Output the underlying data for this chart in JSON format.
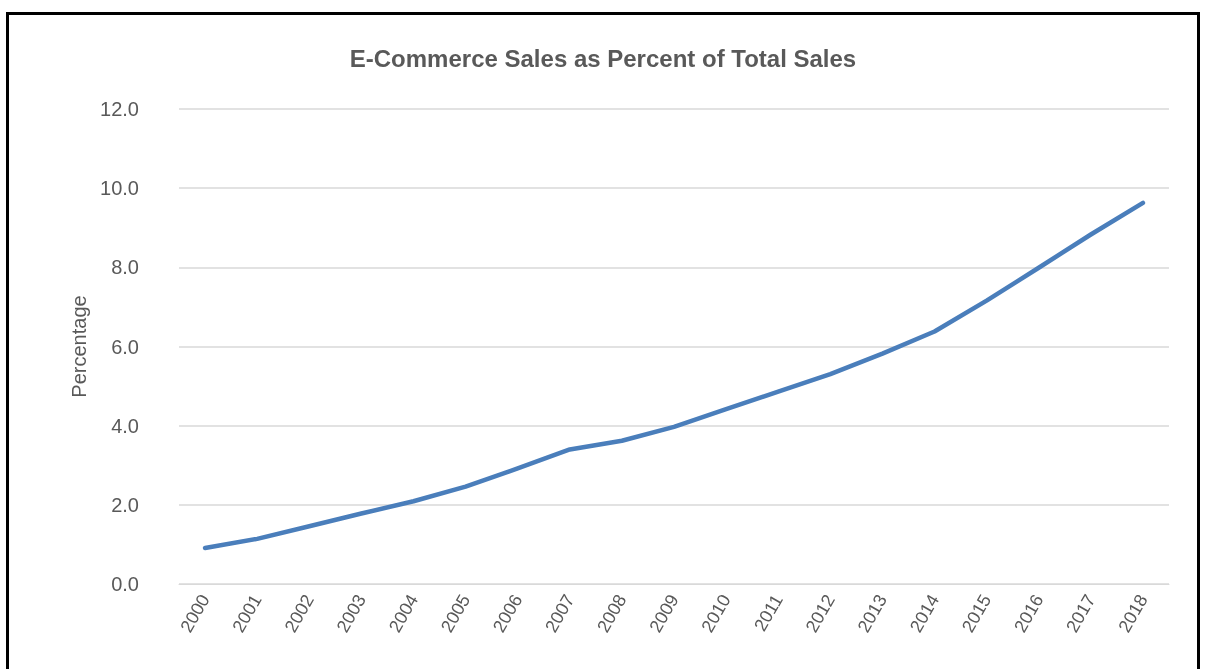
{
  "chart_data": {
    "type": "line",
    "title": "E-Commerce Sales as Percent of Total Sales",
    "ylabel": "Percentage",
    "categories": [
      "2000",
      "2001",
      "2002",
      "2003",
      "2004",
      "2005",
      "2006",
      "2007",
      "2008",
      "2009",
      "2010",
      "2011",
      "2012",
      "2013",
      "2014",
      "2015",
      "2016",
      "2017",
      "2018"
    ],
    "series": [
      {
        "color": "#4a7ebb",
        "values": [
          0.91,
          1.14,
          1.46,
          1.78,
          2.09,
          2.46,
          2.92,
          3.4,
          3.62,
          3.97,
          4.42,
          4.86,
          5.3,
          5.82,
          6.38,
          7.16,
          7.99,
          8.83,
          9.63
        ]
      }
    ],
    "ylim": [
      0,
      12
    ],
    "yticks": [
      {
        "value": 0,
        "label": "0.0"
      },
      {
        "value": 2,
        "label": "2.0"
      },
      {
        "value": 4,
        "label": "4.0"
      },
      {
        "value": 6,
        "label": "6.0"
      },
      {
        "value": 8,
        "label": "8.0"
      },
      {
        "value": 10,
        "label": "10.0"
      },
      {
        "value": 12,
        "label": "12.0"
      }
    ],
    "grid": "y",
    "marker": "none",
    "line_style": "solid"
  }
}
